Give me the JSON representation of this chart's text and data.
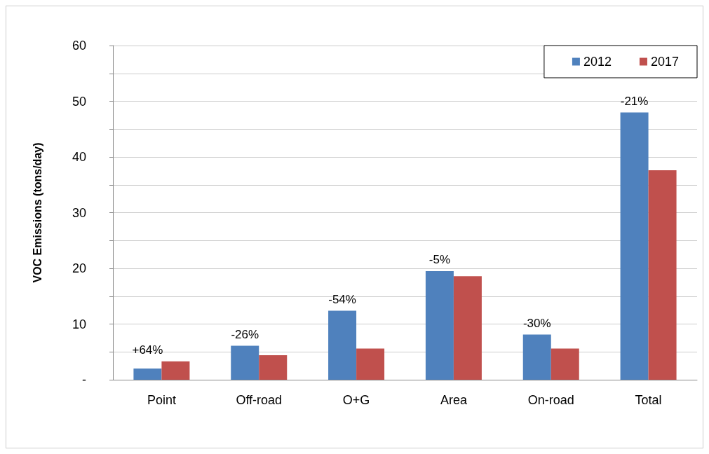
{
  "chart_data": {
    "type": "bar",
    "ylabel": "VOC Emissions (tons/day)",
    "categories": [
      "Point",
      "Off-road",
      "O+G",
      "Area",
      "On-road",
      "Total"
    ],
    "series": [
      {
        "name": "2012",
        "color": "#4f81bd",
        "values": [
          2.0,
          6.1,
          12.4,
          19.5,
          8.1,
          48.0
        ]
      },
      {
        "name": "2017",
        "color": "#c0504d",
        "values": [
          3.3,
          4.4,
          5.6,
          18.6,
          5.6,
          37.6
        ]
      }
    ],
    "ylim": [
      0,
      60
    ],
    "yticks": [
      {
        "value": 0,
        "label": "-"
      },
      {
        "value": 5,
        "label": null
      },
      10,
      {
        "value": 15,
        "label": null
      },
      20,
      {
        "value": 25,
        "label": null
      },
      30,
      {
        "value": 35,
        "label": null
      },
      40,
      {
        "value": 45,
        "label": null
      },
      50,
      {
        "value": 55,
        "label": null
      },
      60
    ],
    "grid": "y",
    "legend": "top right",
    "annotations": [
      "+64%",
      "-26%",
      "-54%",
      "-5%",
      "-30%",
      "-21%"
    ]
  }
}
